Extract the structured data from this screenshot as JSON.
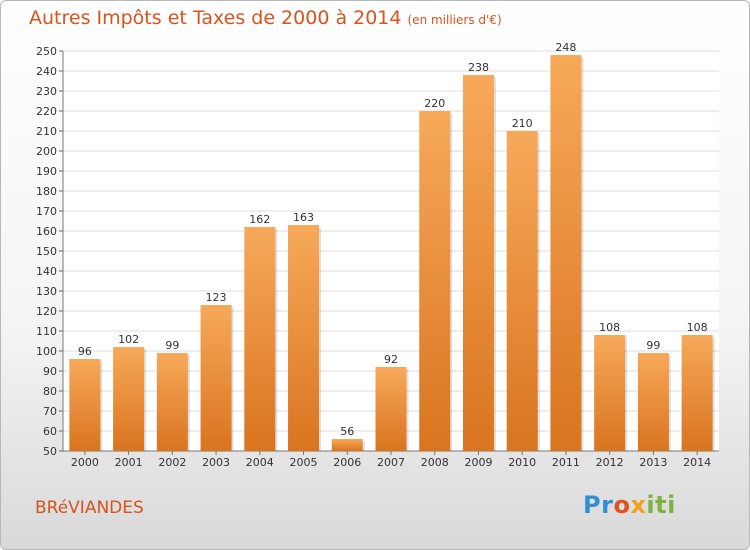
{
  "header": {
    "title": "Autres Impôts et Taxes de 2000 à 2014",
    "unit": "(en milliers d'€)"
  },
  "footer": {
    "commune": "BRéVIANDES",
    "logo": [
      "Pr",
      "o",
      "x",
      "iti"
    ]
  },
  "colors": {
    "title": "#d6541e",
    "bar_light": "#f7a95a",
    "bar_dark": "#d9741f",
    "grid": "#dcdcdc",
    "axis_text": "#333333"
  },
  "chart_data": {
    "type": "bar",
    "title": "Autres Impôts et Taxes de 2000 à 2014",
    "xlabel": "",
    "ylabel": "",
    "categories": [
      "2000",
      "2001",
      "2002",
      "2003",
      "2004",
      "2005",
      "2006",
      "2007",
      "2008",
      "2009",
      "2010",
      "2011",
      "2012",
      "2013",
      "2014"
    ],
    "values": [
      96,
      102,
      99,
      123,
      162,
      163,
      56,
      92,
      220,
      238,
      210,
      248,
      108,
      99,
      108
    ],
    "ylim": [
      50,
      250
    ],
    "ytick_step": 10,
    "grid": true
  }
}
